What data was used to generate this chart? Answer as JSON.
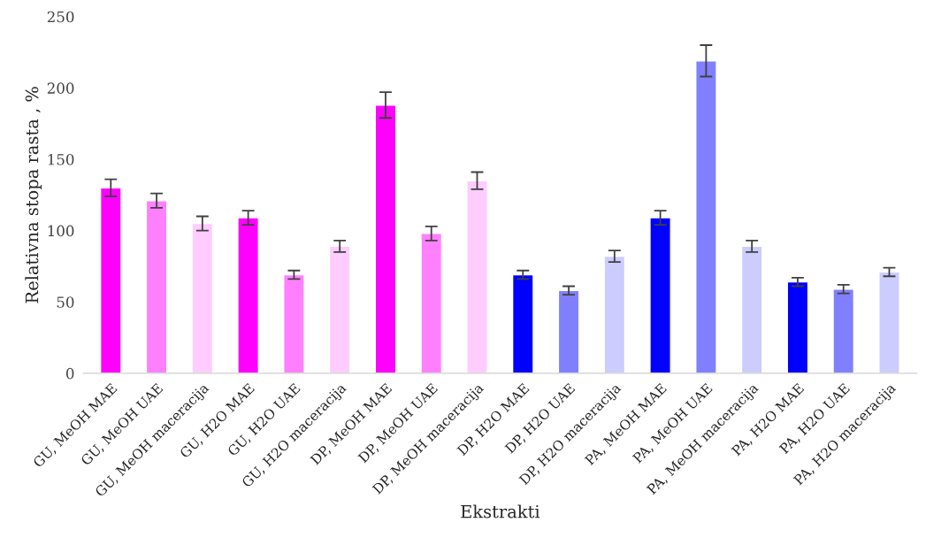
{
  "chart_data": {
    "type": "bar",
    "xlabel": "Ekstrakti",
    "ylabel": "Relativna stopa rasta , %",
    "categories": [
      "GU, MeOH MAE",
      "GU, MeOH UAE",
      "GU, MeOH maceracija",
      "GU, H2O MAE",
      "GU, H2O UAE",
      "GU, H2O maceracija",
      "DP, MeOH MAE",
      "DP, MeOH UAE",
      "DP, MeOH maceracija",
      "DP, H2O MAE",
      "DP, H2O UAE",
      "DP, H2O maceracija",
      "PA, MeOH MAE",
      "PA, MeOH UAE",
      "PA, MeOH maceracija",
      "PA, H2O MAE",
      "PA, H2O UAE",
      "PA, H2O maceracija"
    ],
    "values": [
      130,
      121,
      105,
      109,
      69,
      89,
      188,
      98,
      135,
      69,
      58,
      82,
      109,
      219,
      89,
      64,
      59,
      71
    ],
    "errors": [
      6,
      5,
      5,
      5,
      3,
      4,
      9,
      5,
      6,
      3,
      3,
      4,
      5,
      11,
      4,
      3,
      3,
      3
    ],
    "colors": [
      "#ff00ff",
      "#ff80ff",
      "#ffccff",
      "#ff00ff",
      "#ff80ff",
      "#ffccff",
      "#ff00ff",
      "#ff80ff",
      "#ffccff",
      "#0000ff",
      "#8080ff",
      "#ccccff",
      "#0000ff",
      "#8080ff",
      "#ccccff",
      "#0000ff",
      "#8080ff",
      "#ccccff"
    ],
    "ylim": [
      0,
      250
    ],
    "yticks": [
      0,
      50,
      100,
      150,
      200,
      250
    ],
    "grid": false,
    "legend": false
  }
}
